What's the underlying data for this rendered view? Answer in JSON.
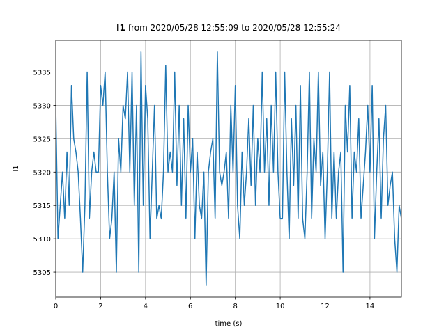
{
  "chart_data": {
    "type": "line",
    "title": {
      "bold": "I1",
      "rest": "from 2020/05/28 12:55:09 to 2020/05/28 12:55:24"
    },
    "x_label": "time (s)",
    "y_label": "I1",
    "color": "#1f77b4",
    "grid": true,
    "xlim": [
      0,
      15.4
    ],
    "ylim": [
      5301.25,
      5339.75
    ],
    "xticks": [
      0,
      2,
      4,
      6,
      8,
      10,
      12,
      14
    ],
    "yticks": [
      5305,
      5310,
      5315,
      5320,
      5325,
      5330,
      5335
    ],
    "x": [
      0,
      0.1,
      0.2,
      0.3,
      0.4,
      0.5,
      0.6,
      0.7,
      0.8,
      0.9,
      1,
      1.1,
      1.2,
      1.3,
      1.4,
      1.5,
      1.6,
      1.7,
      1.8,
      1.9,
      2,
      2.1,
      2.2,
      2.3,
      2.4,
      2.5,
      2.6,
      2.7,
      2.8,
      2.9,
      3,
      3.1,
      3.2,
      3.3,
      3.4,
      3.5,
      3.6,
      3.7,
      3.8,
      3.9,
      4,
      4.1,
      4.2,
      4.3,
      4.4,
      4.5,
      4.6,
      4.7,
      4.8,
      4.9,
      5,
      5.1,
      5.2,
      5.3,
      5.4,
      5.5,
      5.6,
      5.7,
      5.8,
      5.9,
      6,
      6.1,
      6.2,
      6.3,
      6.4,
      6.5,
      6.6,
      6.7,
      6.8,
      6.9,
      7,
      7.1,
      7.2,
      7.3,
      7.4,
      7.5,
      7.6,
      7.7,
      7.8,
      7.9,
      8,
      8.1,
      8.2,
      8.3,
      8.4,
      8.5,
      8.6,
      8.7,
      8.8,
      8.9,
      9,
      9.1,
      9.2,
      9.3,
      9.4,
      9.5,
      9.6,
      9.7,
      9.8,
      9.9,
      10,
      10.1,
      10.2,
      10.3,
      10.4,
      10.5,
      10.6,
      10.7,
      10.8,
      10.9,
      11,
      11.1,
      11.2,
      11.3,
      11.4,
      11.5,
      11.6,
      11.7,
      11.8,
      11.9,
      12,
      12.1,
      12.2,
      12.3,
      12.4,
      12.5,
      12.6,
      12.7,
      12.8,
      12.9,
      13,
      13.1,
      13.2,
      13.3,
      13.4,
      13.5,
      13.6,
      13.7,
      13.8,
      13.9,
      14,
      14.1,
      14.2,
      14.3,
      14.4,
      14.5,
      14.6,
      14.7,
      14.8,
      14.9,
      15,
      15.1,
      15.2,
      15.3,
      15.4
    ],
    "values": [
      5330,
      5310,
      5315,
      5320,
      5313,
      5323,
      5315,
      5333,
      5325,
      5323,
      5320,
      5313,
      5305,
      5315,
      5335,
      5313,
      5320,
      5323,
      5320,
      5320,
      5333,
      5330,
      5335,
      5320,
      5310,
      5313,
      5320,
      5305,
      5325,
      5320,
      5330,
      5328,
      5335,
      5320,
      5335,
      5315,
      5330,
      5305,
      5338,
      5315,
      5333,
      5328,
      5310,
      5320,
      5330,
      5313,
      5315,
      5313,
      5320,
      5336,
      5320,
      5323,
      5320,
      5335,
      5318,
      5330,
      5315,
      5328,
      5313,
      5330,
      5320,
      5325,
      5310,
      5323,
      5315,
      5313,
      5320,
      5303,
      5320,
      5323,
      5325,
      5313,
      5338,
      5320,
      5318,
      5320,
      5323,
      5313,
      5330,
      5320,
      5333,
      5315,
      5310,
      5323,
      5315,
      5320,
      5328,
      5318,
      5330,
      5315,
      5325,
      5320,
      5335,
      5320,
      5328,
      5315,
      5330,
      5320,
      5335,
      5320,
      5313,
      5313,
      5335,
      5320,
      5310,
      5328,
      5318,
      5330,
      5313,
      5333,
      5313,
      5310,
      5320,
      5335,
      5313,
      5325,
      5320,
      5335,
      5318,
      5323,
      5310,
      5320,
      5335,
      5313,
      5323,
      5313,
      5320,
      5323,
      5305,
      5330,
      5323,
      5333,
      5313,
      5323,
      5320,
      5328,
      5313,
      5318,
      5323,
      5330,
      5320,
      5333,
      5310,
      5320,
      5328,
      5313,
      5325,
      5330,
      5315,
      5318,
      5320,
      5310,
      5305,
      5315,
      5313
    ]
  }
}
